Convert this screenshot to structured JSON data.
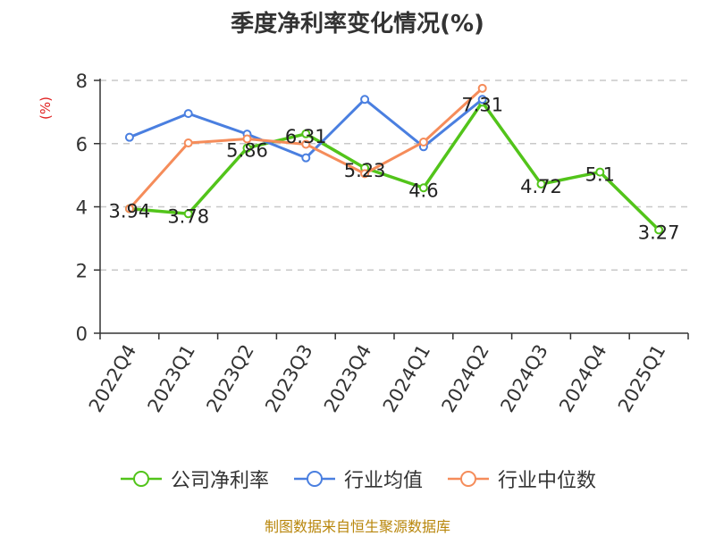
{
  "chart_data": {
    "type": "line",
    "title": "季度净利率变化情况(%)",
    "ylabel": "(%)",
    "xlabel": "",
    "categories": [
      "2022Q4",
      "2023Q1",
      "2023Q2",
      "2023Q3",
      "2023Q4",
      "2024Q1",
      "2024Q2",
      "2024Q3",
      "2024Q4",
      "2025Q1"
    ],
    "ylim": [
      0,
      8
    ],
    "yticks": [
      0,
      2,
      4,
      6,
      8
    ],
    "grid": true,
    "legend_position": "bottom",
    "series": [
      {
        "name": "公司净利率",
        "color": "#52c41a",
        "values": [
          3.94,
          3.78,
          5.86,
          6.31,
          5.23,
          4.6,
          7.31,
          4.72,
          5.1,
          3.27
        ],
        "labels": [
          "3.94",
          "3.78",
          "5.86",
          "6.31",
          "5.23",
          "4.6",
          "7.31",
          "4.72",
          "5.1",
          "3.27"
        ]
      },
      {
        "name": "行业均值",
        "color": "#4a7fe0",
        "values": [
          6.2,
          6.95,
          6.3,
          5.55,
          7.4,
          5.9,
          7.4,
          null,
          null,
          null
        ]
      },
      {
        "name": "行业中位数",
        "color": "#f58c5a",
        "values": [
          3.94,
          6.02,
          6.15,
          5.98,
          5.05,
          6.05,
          7.75,
          null,
          null,
          null
        ]
      }
    ]
  },
  "footer": "制图数据来自恒生聚源数据库"
}
